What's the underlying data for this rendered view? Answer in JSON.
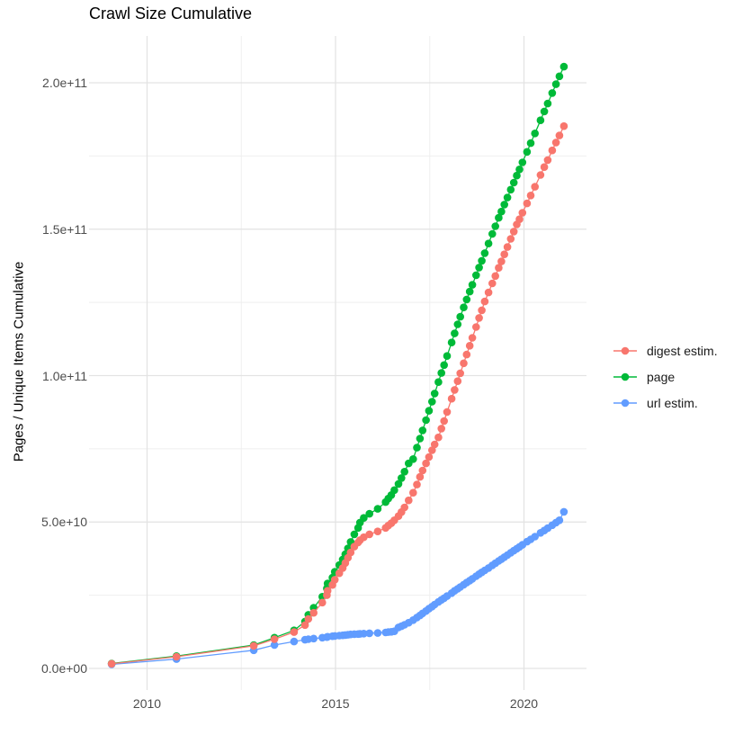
{
  "title": "Crawl Size Cumulative",
  "colors": {
    "background": "#ffffff",
    "grid_major": "#e3e3e3",
    "grid_minor": "#efefef",
    "tick_label": "#4d4d4d",
    "text": "#000000",
    "digest": "#F8766D",
    "page": "#00BA38",
    "url": "#619CFF"
  },
  "chart_data": {
    "type": "line",
    "title": "Crawl Size Cumulative",
    "xlabel": "",
    "ylabel": "Pages / Unique Items Cumulative",
    "grid": true,
    "legend_position": "right",
    "xlim": [
      2008.5,
      2021.7
    ],
    "ylim": [
      0,
      216000000000.0
    ],
    "x_ticks": {
      "major": [
        2010,
        2015,
        2020
      ],
      "labels": [
        "2010",
        "2015",
        "2020"
      ],
      "minor": [
        2012.5,
        2017.5
      ]
    },
    "y_ticks": {
      "major": [
        0,
        50000000000.0,
        100000000000.0,
        150000000000.0,
        200000000000.0
      ],
      "labels": [
        "0.0e+00",
        "5.0e+10",
        "1.0e+11",
        "1.5e+11",
        "2.0e+11"
      ],
      "minor": [
        25000000000.0,
        75000000000.0,
        125000000000.0,
        175000000000.0
      ]
    },
    "x": [
      2009.06,
      2010.78,
      2012.83,
      2013.38,
      2013.9,
      2014.19,
      2014.28,
      2014.42,
      2014.65,
      2014.77,
      2014.79,
      2014.92,
      2014.98,
      2015.1,
      2015.19,
      2015.26,
      2015.33,
      2015.4,
      2015.5,
      2015.6,
      2015.65,
      2015.75,
      2015.9,
      2016.12,
      2016.33,
      2016.4,
      2016.48,
      2016.56,
      2016.67,
      2016.75,
      2016.83,
      2016.94,
      2017.06,
      2017.16,
      2017.24,
      2017.31,
      2017.4,
      2017.48,
      2017.56,
      2017.63,
      2017.73,
      2017.81,
      2017.88,
      2017.96,
      2018.08,
      2018.16,
      2018.24,
      2018.31,
      2018.4,
      2018.48,
      2018.56,
      2018.63,
      2018.73,
      2018.81,
      2018.88,
      2018.96,
      2019.06,
      2019.16,
      2019.24,
      2019.33,
      2019.4,
      2019.48,
      2019.56,
      2019.65,
      2019.73,
      2019.81,
      2019.88,
      2019.96,
      2020.08,
      2020.18,
      2020.29,
      2020.44,
      2020.54,
      2020.63,
      2020.75,
      2020.85,
      2020.94,
      2021.06
    ],
    "series": [
      {
        "name": "digest estim.",
        "color": "#F8766D",
        "values": [
          1600000000.0,
          4000000000.0,
          7700000000.0,
          10000000000.0,
          12400000000.0,
          14800000000.0,
          16900000000.0,
          19000000000.0,
          22500000000.0,
          25000000000.0,
          26500000000.0,
          28500000000.0,
          30300000000.0,
          32500000000.0,
          34300000000.0,
          36000000000.0,
          37800000000.0,
          39600000000.0,
          41600000000.0,
          43000000000.0,
          43800000000.0,
          44800000000.0,
          45800000000.0,
          46800000000.0,
          48000000000.0,
          48800000000.0,
          49600000000.0,
          50600000000.0,
          52000000000.0,
          53400000000.0,
          55000000000.0,
          57400000000.0,
          60000000000.0,
          62800000000.0,
          65400000000.0,
          67600000000.0,
          70000000000.0,
          72200000000.0,
          74500000000.0,
          76500000000.0,
          78900000000.0,
          81900000000.0,
          84500000000.0,
          87600000000.0,
          92100000000.0,
          95100000000.0,
          98100000000.0,
          100800000000.0,
          104200000000.0,
          107200000000.0,
          110200000000.0,
          112900000000.0,
          116600000000.0,
          119700000000.0,
          122300000000.0,
          125300000000.0,
          128400000000.0,
          131500000000.0,
          134000000000.0,
          136800000000.0,
          139000000000.0,
          141400000000.0,
          143900000000.0,
          146700000000.0,
          149200000000.0,
          151600000000.0,
          153400000000.0,
          155600000000.0,
          158800000000.0,
          161500000000.0,
          164500000000.0,
          168500000000.0,
          171200000000.0,
          173600000000.0,
          176900000000.0,
          179600000000.0,
          182000000000.0,
          185200000000.0
        ]
      },
      {
        "name": "page",
        "color": "#00BA38",
        "values": [
          1700000000.0,
          4200000000.0,
          8000000000.0,
          10500000000.0,
          13000000000.0,
          16000000000.0,
          18300000000.0,
          20700000000.0,
          24500000000.0,
          27300000000.0,
          29000000000.0,
          31000000000.0,
          33000000000.0,
          35300000000.0,
          37200000000.0,
          39000000000.0,
          41000000000.0,
          43200000000.0,
          45800000000.0,
          48000000000.0,
          49800000000.0,
          51400000000.0,
          52800000000.0,
          54500000000.0,
          56800000000.0,
          58000000000.0,
          59200000000.0,
          60900000000.0,
          63000000000.0,
          65000000000.0,
          67200000000.0,
          70000000000.0,
          71500000000.0,
          75400000000.0,
          78500000000.0,
          81300000000.0,
          84800000000.0,
          88000000000.0,
          91100000000.0,
          93900000000.0,
          97800000000.0,
          100900000000.0,
          103600000000.0,
          106700000000.0,
          111300000000.0,
          114400000000.0,
          117500000000.0,
          120100000000.0,
          123300000000.0,
          126000000000.0,
          128700000000.0,
          131000000000.0,
          134300000000.0,
          136900000000.0,
          139200000000.0,
          141800000000.0,
          145100000000.0,
          148400000000.0,
          151000000000.0,
          153900000000.0,
          156000000000.0,
          158400000000.0,
          160800000000.0,
          163500000000.0,
          165900000000.0,
          168300000000.0,
          170400000000.0,
          172800000000.0,
          176400000000.0,
          179400000000.0,
          182700000000.0,
          187200000000.0,
          190200000000.0,
          192900000000.0,
          196500000000.0,
          199500000000.0,
          202200000000.0,
          205500000000.0
        ]
      },
      {
        "name": "url estim.",
        "color": "#619CFF",
        "values": [
          1400000000.0,
          3200000000.0,
          6200000000.0,
          8000000000.0,
          9200000000.0,
          9800000000.0,
          10000000000.0,
          10200000000.0,
          10500000000.0,
          10700000000.0,
          10800000000.0,
          11000000000.0,
          11100000000.0,
          11200000000.0,
          11300000000.0,
          11400000000.0,
          11500000000.0,
          11600000000.0,
          11700000000.0,
          11750000000.0,
          11800000000.0,
          11900000000.0,
          12000000000.0,
          12100000000.0,
          12300000000.0,
          12400000000.0,
          12500000000.0,
          12700000000.0,
          14000000000.0,
          14400000000.0,
          14900000000.0,
          15600000000.0,
          16500000000.0,
          17400000000.0,
          18100000000.0,
          18800000000.0,
          19600000000.0,
          20400000000.0,
          21100000000.0,
          21800000000.0,
          22700000000.0,
          23400000000.0,
          24000000000.0,
          24700000000.0,
          25700000000.0,
          26500000000.0,
          27200000000.0,
          27800000000.0,
          28600000000.0,
          29300000000.0,
          30000000000.0,
          30600000000.0,
          31500000000.0,
          32200000000.0,
          32800000000.0,
          33500000000.0,
          34300000000.0,
          35200000000.0,
          35900000000.0,
          36700000000.0,
          37300000000.0,
          38000000000.0,
          38700000000.0,
          39500000000.0,
          40200000000.0,
          40900000000.0,
          41500000000.0,
          42200000000.0,
          43300000000.0,
          44100000000.0,
          45000000000.0,
          46300000000.0,
          47100000000.0,
          47900000000.0,
          48900000000.0,
          49800000000.0,
          50600000000.0,
          53500000000.0
        ]
      }
    ]
  }
}
